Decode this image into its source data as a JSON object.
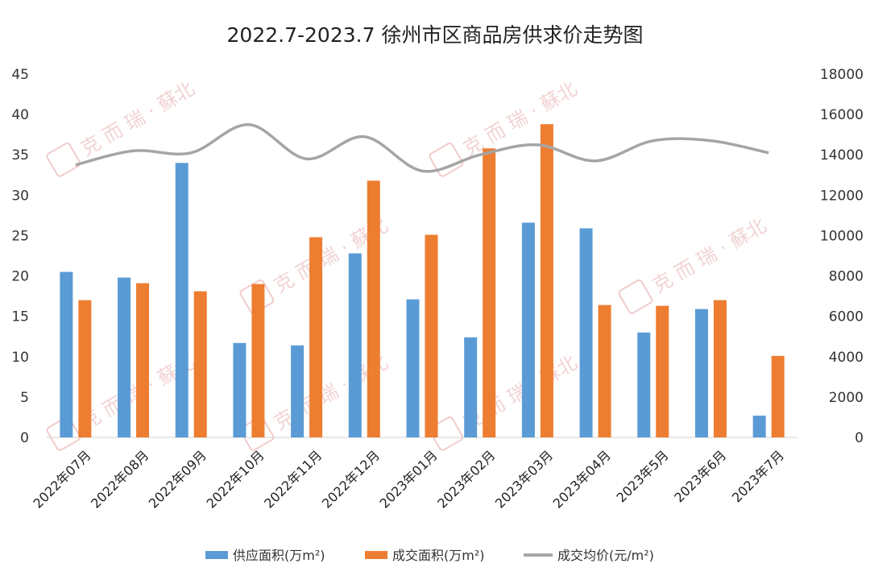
{
  "chart_data": {
    "type": "bar",
    "title": "2022.7-2023.7 徐州市区商品房供求价走势图",
    "categories": [
      "2022年07月",
      "2022年08月",
      "2022年09月",
      "2022年10月",
      "2022年11月",
      "2022年12月",
      "2023年01月",
      "2023年02月",
      "2023年03月",
      "2023年04月",
      "2023年5月",
      "2023年6月",
      "2023年7月"
    ],
    "y_left": {
      "min": 0,
      "max": 45,
      "ticks": [
        0,
        5,
        10,
        15,
        20,
        25,
        30,
        35,
        40,
        45
      ]
    },
    "y_right": {
      "min": 0,
      "max": 18000,
      "ticks": [
        0,
        2000,
        4000,
        6000,
        8000,
        10000,
        12000,
        14000,
        16000,
        18000
      ]
    },
    "series": [
      {
        "name": "供应面积(万m²)",
        "type": "bar",
        "axis": "left",
        "color": "#5b9bd5",
        "values": [
          20.5,
          19.8,
          34.0,
          11.7,
          11.4,
          22.8,
          17.1,
          12.4,
          26.6,
          25.9,
          13.0,
          15.9,
          2.7
        ]
      },
      {
        "name": "成交面积(万m²)",
        "type": "bar",
        "axis": "left",
        "color": "#ed7d31",
        "values": [
          17.0,
          19.1,
          18.1,
          19.0,
          24.8,
          31.8,
          25.1,
          35.8,
          38.8,
          16.4,
          16.3,
          17.0,
          10.1
        ]
      },
      {
        "name": "成交均价(元/m²)",
        "type": "line",
        "axis": "right",
        "color": "#a5a5a5",
        "values": [
          13500,
          14200,
          14100,
          15500,
          13800,
          14900,
          13200,
          14000,
          14500,
          13700,
          14700,
          14700,
          14100
        ]
      }
    ],
    "grid": false,
    "legend_position": "bottom",
    "watermark": "克 而 瑞 · 蘇北"
  }
}
